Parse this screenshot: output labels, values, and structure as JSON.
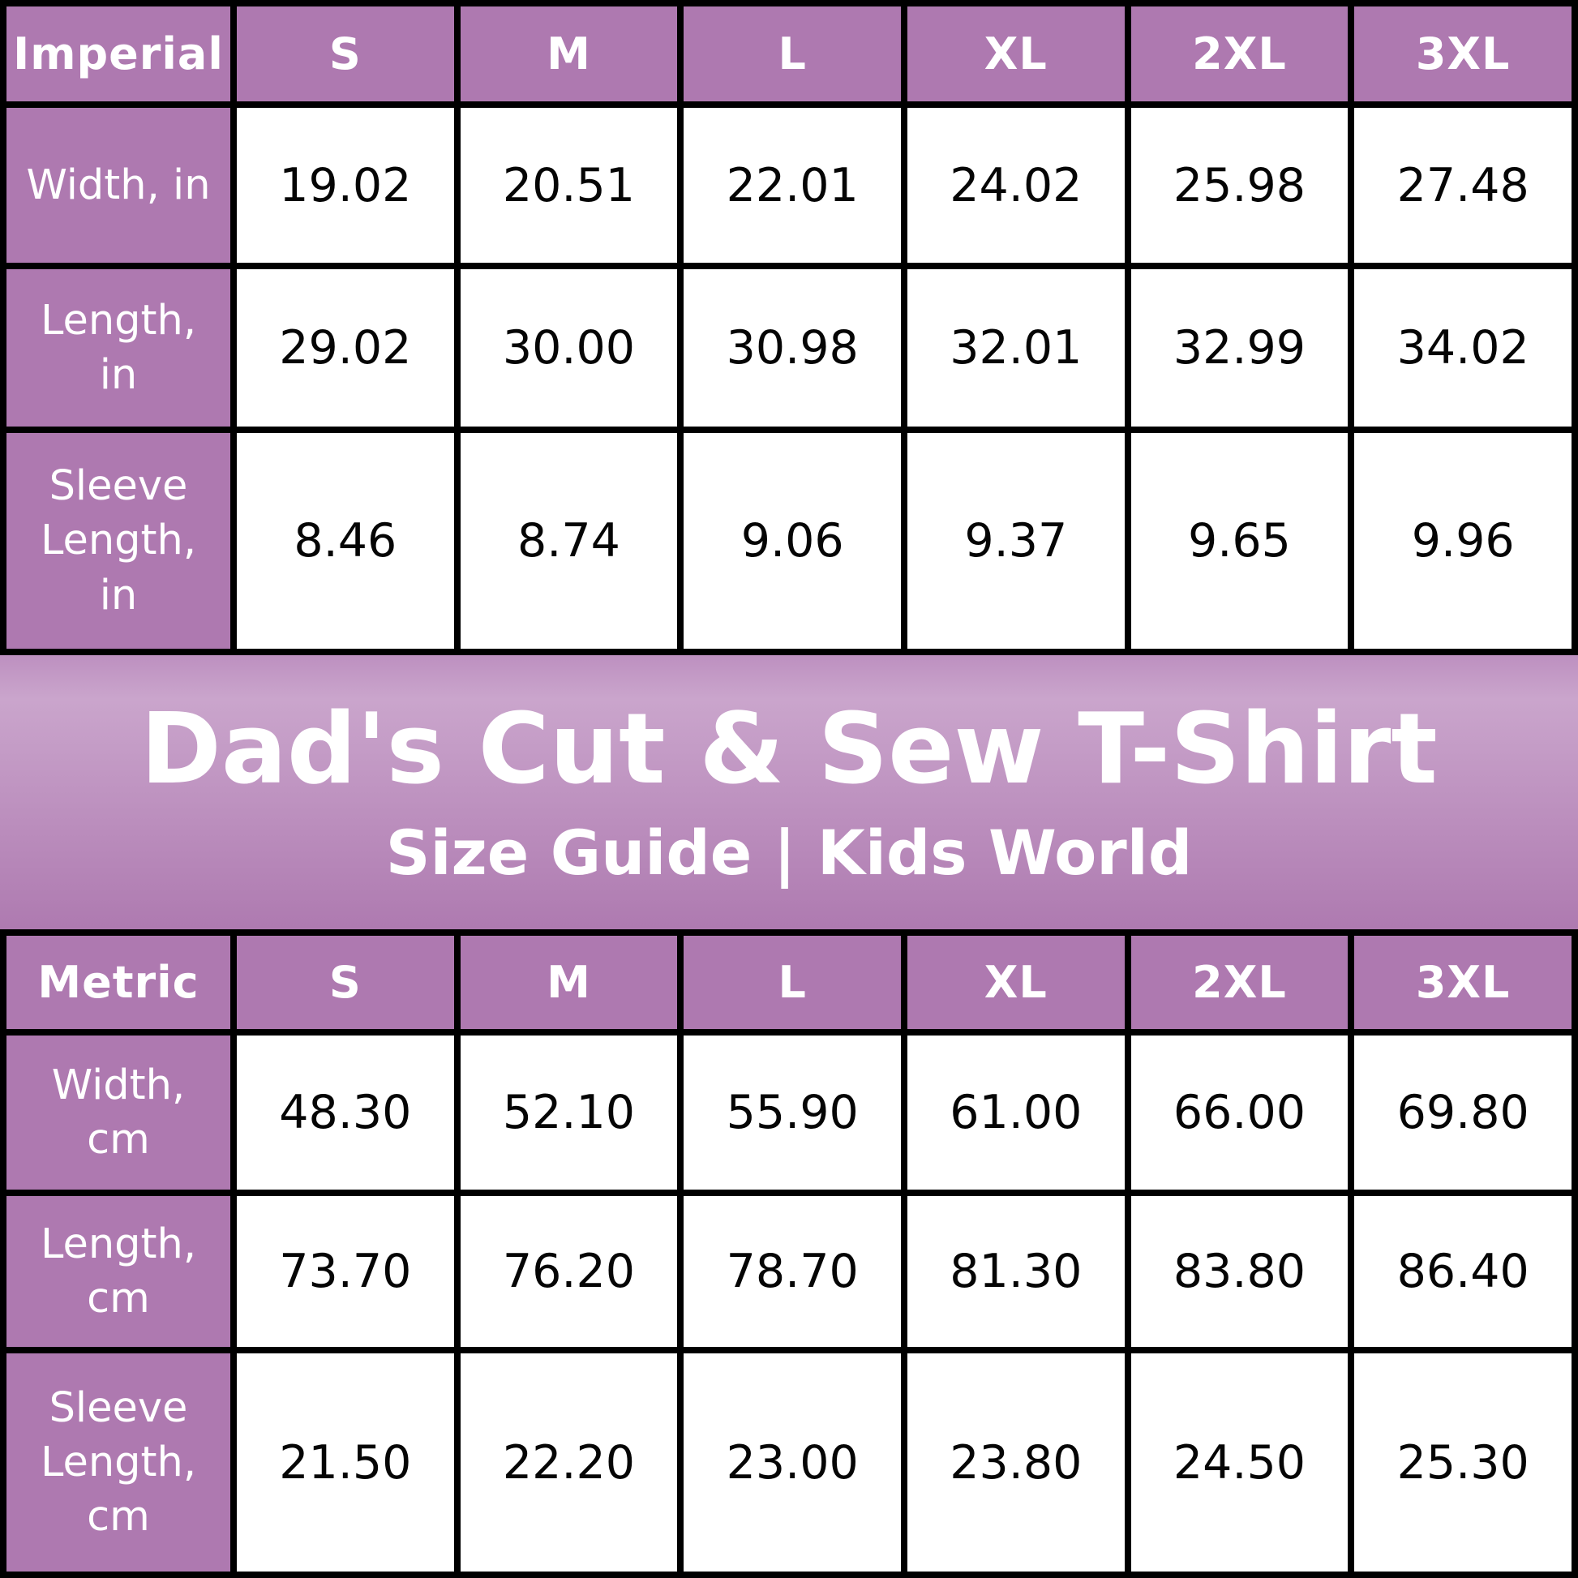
{
  "banner": {
    "title": "Dad's Cut & Sew T-Shirt",
    "subtitle": "Size Guide | Kids World"
  },
  "colors": {
    "cell_purple": "#ae79b0",
    "banner_gradient_top": "#bd90c0",
    "banner_gradient_middle": "#caa5cc",
    "banner_gradient_bottom": "#ae7ab0",
    "border_black": "#000000",
    "cell_white": "#ffffff",
    "text_white": "#ffffff",
    "text_black": "#050505"
  },
  "imperial_table": {
    "corner_label": "Imperial",
    "columns": [
      "S",
      "M",
      "L",
      "XL",
      "2XL",
      "3XL"
    ],
    "rows": [
      {
        "label": "Width, in",
        "values": [
          "19.02",
          "20.51",
          "22.01",
          "24.02",
          "25.98",
          "27.48"
        ]
      },
      {
        "label": "Length,\nin",
        "values": [
          "29.02",
          "30.00",
          "30.98",
          "32.01",
          "32.99",
          "34.02"
        ]
      },
      {
        "label": "Sleeve\nLength,\nin",
        "values": [
          "8.46",
          "8.74",
          "9.06",
          "9.37",
          "9.65",
          "9.96"
        ]
      }
    ]
  },
  "metric_table": {
    "corner_label": "Metric",
    "columns": [
      "S",
      "M",
      "L",
      "XL",
      "2XL",
      "3XL"
    ],
    "rows": [
      {
        "label": "Width,\ncm",
        "values": [
          "48.30",
          "52.10",
          "55.90",
          "61.00",
          "66.00",
          "69.80"
        ]
      },
      {
        "label": "Length,\ncm",
        "values": [
          "73.70",
          "76.20",
          "78.70",
          "81.30",
          "83.80",
          "86.40"
        ]
      },
      {
        "label": "Sleeve\nLength,\ncm",
        "values": [
          "21.50",
          "22.20",
          "23.00",
          "23.80",
          "24.50",
          "25.30"
        ]
      }
    ]
  },
  "chart_data": [
    {
      "type": "table",
      "title": "Imperial",
      "columns": [
        "S",
        "M",
        "L",
        "XL",
        "2XL",
        "3XL"
      ],
      "rows": [
        {
          "label": "Width, in",
          "values": [
            19.02,
            20.51,
            22.01,
            24.02,
            25.98,
            27.48
          ]
        },
        {
          "label": "Length, in",
          "values": [
            29.02,
            30.0,
            30.98,
            32.01,
            32.99,
            34.02
          ]
        },
        {
          "label": "Sleeve Length, in",
          "values": [
            8.46,
            8.74,
            9.06,
            9.37,
            9.65,
            9.96
          ]
        }
      ]
    },
    {
      "type": "table",
      "title": "Metric",
      "columns": [
        "S",
        "M",
        "L",
        "XL",
        "2XL",
        "3XL"
      ],
      "rows": [
        {
          "label": "Width, cm",
          "values": [
            48.3,
            52.1,
            55.9,
            61.0,
            66.0,
            69.8
          ]
        },
        {
          "label": "Length, cm",
          "values": [
            73.7,
            76.2,
            78.7,
            81.3,
            83.8,
            86.4
          ]
        },
        {
          "label": "Sleeve Length, cm",
          "values": [
            21.5,
            22.2,
            23.0,
            23.8,
            24.5,
            25.3
          ]
        }
      ]
    }
  ]
}
